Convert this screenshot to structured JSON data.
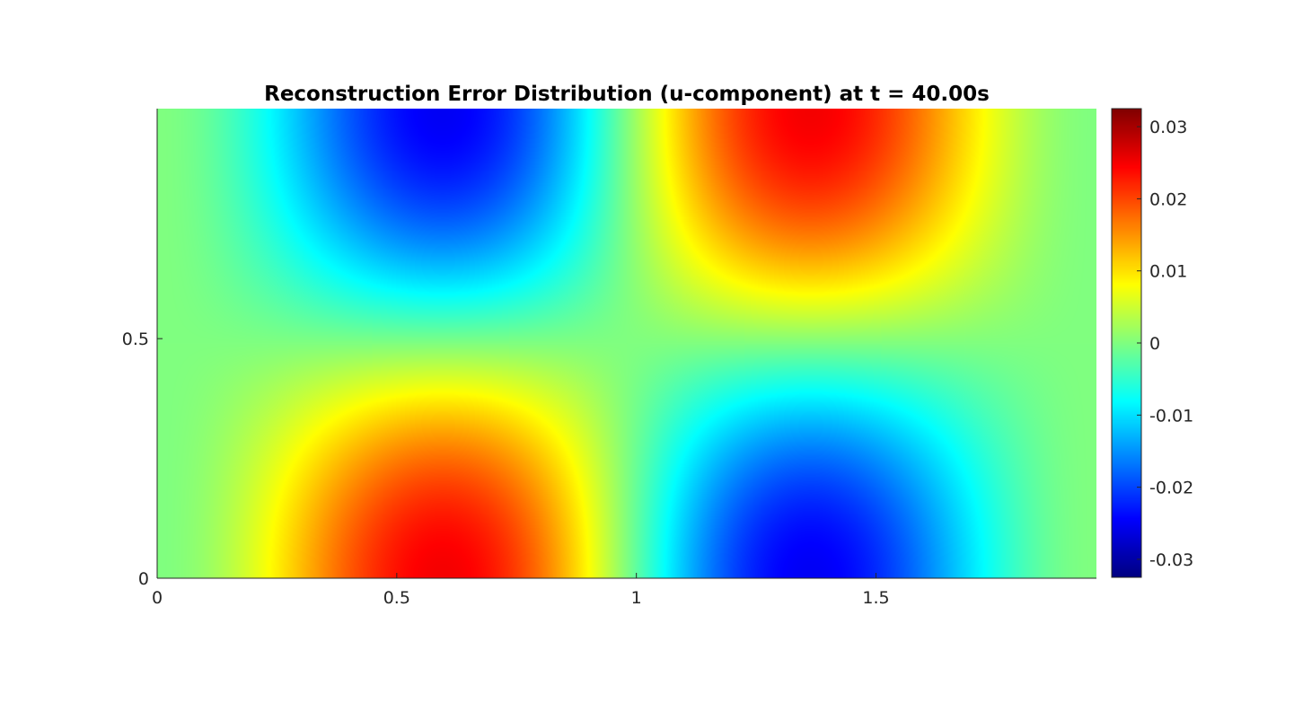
{
  "chart_data": {
    "type": "heatmap",
    "title": "Reconstruction Error Distribution (u-component) at t = 40.00s",
    "xlabel": "",
    "ylabel": "",
    "xlim": [
      0,
      1.96
    ],
    "ylim": [
      0,
      0.98
    ],
    "x_ticks": [
      0,
      0.5,
      1,
      1.5
    ],
    "x_tick_labels": [
      "0",
      "0.5",
      "1",
      "1.5"
    ],
    "y_ticks": [
      0,
      0.5
    ],
    "y_tick_labels": [
      "0",
      "0.5"
    ],
    "colormap": "jet",
    "clim": [
      -0.0325,
      0.0325
    ],
    "colorbar": {
      "ticks": [
        0.03,
        0.02,
        0.01,
        0,
        -0.01,
        -0.02,
        -0.03
      ],
      "tick_labels": [
        "0.03",
        "0.02",
        "0.01",
        "0",
        "-0.01",
        "-0.02",
        "-0.03"
      ],
      "placement": "right"
    },
    "field": {
      "description": "u-error pattern: red maximum near (0.63, 0) and (1.37, 0.98), blue minimum near (0.63, 0.98) and (1.37, 0)",
      "extrema": [
        {
          "x": 0.63,
          "y": 0.0,
          "value": 0.0325
        },
        {
          "x": 1.37,
          "y": 0.98,
          "value": 0.0325
        },
        {
          "x": 0.63,
          "y": 0.98,
          "value": -0.0325
        },
        {
          "x": 1.37,
          "y": 0.0,
          "value": -0.0325
        }
      ]
    },
    "grid": false
  }
}
